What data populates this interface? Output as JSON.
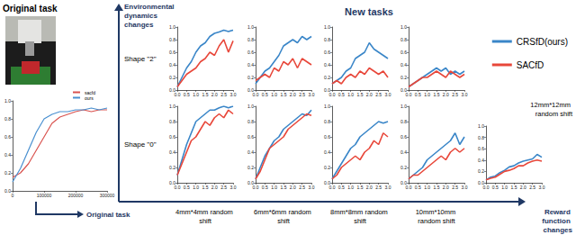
{
  "figure": {
    "left_title": "Original task",
    "right_title": "New tasks",
    "y_arrow_label": "Environmental dynamics changes",
    "x_arrow_label": "Reward function changes",
    "origin_label": "Original task",
    "rows": [
      "Shape \"2\"",
      "Shape \"0\""
    ],
    "columns": [
      "4mm*4mm random shift",
      "6mm*6mm random shift",
      "8mm*8mm random shift",
      "10mm*10mm random shift",
      "12mm*12mm random shift"
    ]
  },
  "chart_data": [
    {
      "type": "line",
      "grid": false,
      "x": [
        0,
        25000,
        50000,
        75000,
        100000,
        125000,
        150000,
        175000,
        200000,
        225000,
        250000,
        275000,
        300000
      ],
      "xlim": [
        0,
        300000
      ],
      "xticks": [
        0,
        100000,
        200000,
        300000
      ],
      "ylim": [
        0,
        1
      ],
      "yticks": [
        {
          "value": 0,
          "label": "0.0"
        },
        0.2,
        0.4,
        0.6,
        0.8,
        {
          "value": 1,
          "label": "1.0"
        }
      ],
      "series": [
        {
          "name": "sacfd",
          "color": "#d9534f",
          "values": [
            0.15,
            0.2,
            0.3,
            0.45,
            0.6,
            0.75,
            0.82,
            0.85,
            0.88,
            0.9,
            0.88,
            0.9,
            0.9
          ]
        },
        {
          "name": "ours",
          "color": "#4a90d0",
          "values": [
            0.1,
            0.25,
            0.45,
            0.65,
            0.8,
            0.85,
            0.88,
            0.88,
            0.9,
            0.9,
            0.92,
            0.9,
            0.92
          ]
        }
      ]
    },
    {
      "type": "line",
      "grid": false,
      "x": [
        0,
        0.25,
        0.5,
        0.75,
        1,
        1.25,
        1.5,
        1.75,
        2,
        2.25,
        2.5,
        2.75,
        3
      ],
      "xlim": [
        0,
        3
      ],
      "xticks": [
        {
          "value": 0,
          "label": "0.0"
        },
        0.5,
        {
          "value": 1,
          "label": "1.0"
        },
        1.5,
        {
          "value": 2,
          "label": "2.0"
        },
        2.5,
        {
          "value": 3,
          "label": "3.0"
        }
      ],
      "ylim": [
        0,
        1
      ],
      "yticks": [
        {
          "value": 0,
          "label": "0.0"
        },
        0.2,
        0.4,
        0.6,
        0.8,
        {
          "value": 1,
          "label": "1.0"
        }
      ],
      "series": [
        {
          "name": "CRSfD(ours)",
          "color": "#3a86c8",
          "values": [
            0.05,
            0.2,
            0.35,
            0.45,
            0.6,
            0.7,
            0.75,
            0.85,
            0.9,
            0.92,
            0.95,
            0.93,
            0.95
          ]
        },
        {
          "name": "SACfD",
          "color": "#e8473a",
          "values": [
            0.05,
            0.15,
            0.25,
            0.3,
            0.35,
            0.45,
            0.5,
            0.6,
            0.55,
            0.7,
            0.8,
            0.6,
            0.78
          ]
        }
      ]
    },
    {
      "type": "line",
      "grid": false,
      "x": [
        0,
        0.25,
        0.5,
        0.75,
        1,
        1.25,
        1.5,
        1.75,
        2,
        2.25,
        2.5,
        2.75,
        3
      ],
      "xlim": [
        0,
        3
      ],
      "xticks": [
        {
          "value": 0,
          "label": "0.0"
        },
        0.5,
        {
          "value": 1,
          "label": "1.0"
        },
        1.5,
        {
          "value": 2,
          "label": "2.0"
        },
        2.5,
        {
          "value": 3,
          "label": "3.0"
        }
      ],
      "ylim": [
        0,
        1
      ],
      "yticks": [
        {
          "value": 0,
          "label": "0.0"
        },
        0.2,
        0.4,
        0.6,
        0.8,
        {
          "value": 1,
          "label": "1.0"
        }
      ],
      "series": [
        {
          "name": "CRSfD(ours)",
          "color": "#3a86c8",
          "values": [
            0.1,
            0.2,
            0.3,
            0.35,
            0.45,
            0.55,
            0.7,
            0.75,
            0.8,
            0.75,
            0.85,
            0.8,
            0.85
          ]
        },
        {
          "name": "SACfD",
          "color": "#e8473a",
          "values": [
            0.15,
            0.2,
            0.25,
            0.2,
            0.35,
            0.3,
            0.45,
            0.4,
            0.5,
            0.35,
            0.5,
            0.45,
            0.4
          ]
        }
      ]
    },
    {
      "type": "line",
      "grid": false,
      "x": [
        0,
        0.25,
        0.5,
        0.75,
        1,
        1.25,
        1.5,
        1.75,
        2,
        2.25,
        2.5,
        2.75,
        3
      ],
      "xlim": [
        0,
        3
      ],
      "xticks": [
        {
          "value": 0,
          "label": "0.0"
        },
        0.5,
        {
          "value": 1,
          "label": "1.0"
        },
        1.5,
        {
          "value": 2,
          "label": "2.0"
        },
        2.5,
        {
          "value": 3,
          "label": "3.0"
        }
      ],
      "ylim": [
        0,
        1
      ],
      "yticks": [
        {
          "value": 0,
          "label": "0.0"
        },
        0.2,
        0.4,
        0.6,
        0.8,
        {
          "value": 1,
          "label": "1.0"
        }
      ],
      "series": [
        {
          "name": "CRSfD(ours)",
          "color": "#3a86c8",
          "values": [
            0.1,
            0.15,
            0.2,
            0.3,
            0.35,
            0.5,
            0.55,
            0.6,
            0.75,
            0.65,
            0.6,
            0.55,
            0.5
          ]
        },
        {
          "name": "SACfD",
          "color": "#e8473a",
          "values": [
            0.1,
            0.15,
            0.1,
            0.2,
            0.25,
            0.2,
            0.3,
            0.25,
            0.35,
            0.3,
            0.25,
            0.3,
            0.2
          ]
        }
      ]
    },
    {
      "type": "line",
      "grid": false,
      "x": [
        0,
        0.25,
        0.5,
        0.75,
        1,
        1.25,
        1.5,
        1.75,
        2,
        2.25,
        2.5,
        2.75,
        3
      ],
      "xlim": [
        0,
        3
      ],
      "xticks": [
        {
          "value": 0,
          "label": "0.0"
        },
        0.5,
        {
          "value": 1,
          "label": "1.0"
        },
        1.5,
        {
          "value": 2,
          "label": "2.0"
        },
        2.5,
        {
          "value": 3,
          "label": "3.0"
        }
      ],
      "ylim": [
        0,
        1
      ],
      "yticks": [
        {
          "value": 0,
          "label": "0.0"
        },
        0.2,
        0.4,
        0.6,
        0.8,
        {
          "value": 1,
          "label": "1.0"
        }
      ],
      "series": [
        {
          "name": "CRSfD(ours)",
          "color": "#3a86c8",
          "values": [
            0.05,
            0.1,
            0.15,
            0.2,
            0.25,
            0.3,
            0.35,
            0.3,
            0.35,
            0.25,
            0.3,
            0.25,
            0.3
          ]
        },
        {
          "name": "SACfD",
          "color": "#e8473a",
          "values": [
            0.05,
            0.1,
            0.15,
            0.2,
            0.2,
            0.25,
            0.3,
            0.25,
            0.2,
            0.3,
            0.25,
            0.2,
            0.25
          ]
        }
      ]
    },
    {
      "type": "line",
      "grid": false,
      "x": [
        0,
        0.25,
        0.5,
        0.75,
        1,
        1.25,
        1.5,
        1.75,
        2,
        2.25,
        2.5,
        2.75,
        3
      ],
      "xlim": [
        0,
        3
      ],
      "xticks": [
        {
          "value": 0,
          "label": "0.0"
        },
        0.5,
        {
          "value": 1,
          "label": "1.0"
        },
        1.5,
        {
          "value": 2,
          "label": "2.0"
        },
        2.5,
        {
          "value": 3,
          "label": "3.0"
        }
      ],
      "ylim": [
        0,
        1
      ],
      "yticks": [
        {
          "value": 0,
          "label": "0.0"
        },
        0.2,
        0.4,
        0.6,
        0.8,
        {
          "value": 1,
          "label": "1.0"
        }
      ],
      "series": [
        {
          "name": "CRSfD(ours)",
          "color": "#3a86c8",
          "values": [
            0.1,
            0.3,
            0.5,
            0.65,
            0.8,
            0.85,
            0.9,
            0.95,
            0.95,
            0.98,
            1.0,
            0.98,
            1.0
          ]
        },
        {
          "name": "SACfD",
          "color": "#e8473a",
          "values": [
            0.1,
            0.25,
            0.4,
            0.55,
            0.6,
            0.7,
            0.8,
            0.75,
            0.85,
            0.9,
            0.85,
            0.95,
            0.9
          ]
        }
      ]
    },
    {
      "type": "line",
      "grid": false,
      "x": [
        0,
        0.25,
        0.5,
        0.75,
        1,
        1.25,
        1.5,
        1.75,
        2,
        2.25,
        2.5,
        2.75,
        3
      ],
      "xlim": [
        0,
        3
      ],
      "xticks": [
        {
          "value": 0,
          "label": "0.0"
        },
        0.5,
        {
          "value": 1,
          "label": "1.0"
        },
        1.5,
        {
          "value": 2,
          "label": "2.0"
        },
        2.5,
        {
          "value": 3,
          "label": "3.0"
        }
      ],
      "ylim": [
        0,
        1
      ],
      "yticks": [
        {
          "value": 0,
          "label": "0.0"
        },
        0.2,
        0.4,
        0.6,
        0.8,
        {
          "value": 1,
          "label": "1.0"
        }
      ],
      "series": [
        {
          "name": "CRSfD(ours)",
          "color": "#3a86c8",
          "values": [
            0.05,
            0.2,
            0.35,
            0.45,
            0.55,
            0.6,
            0.7,
            0.75,
            0.8,
            0.85,
            0.9,
            0.88,
            0.95
          ]
        },
        {
          "name": "SACfD",
          "color": "#e8473a",
          "values": [
            0.05,
            0.15,
            0.3,
            0.45,
            0.5,
            0.55,
            0.6,
            0.7,
            0.75,
            0.8,
            0.85,
            0.9,
            0.88
          ]
        }
      ]
    },
    {
      "type": "line",
      "grid": false,
      "x": [
        0,
        0.25,
        0.5,
        0.75,
        1,
        1.25,
        1.5,
        1.75,
        2,
        2.25,
        2.5,
        2.75,
        3
      ],
      "xlim": [
        0,
        3
      ],
      "xticks": [
        {
          "value": 0,
          "label": "0.0"
        },
        0.5,
        {
          "value": 1,
          "label": "1.0"
        },
        1.5,
        {
          "value": 2,
          "label": "2.0"
        },
        2.5,
        {
          "value": 3,
          "label": "3.0"
        }
      ],
      "ylim": [
        0,
        1
      ],
      "yticks": [
        {
          "value": 0,
          "label": "0.0"
        },
        0.2,
        0.4,
        0.6,
        0.8,
        {
          "value": 1,
          "label": "1.0"
        }
      ],
      "series": [
        {
          "name": "CRSfD(ours)",
          "color": "#3a86c8",
          "values": [
            0.05,
            0.15,
            0.25,
            0.35,
            0.45,
            0.5,
            0.6,
            0.65,
            0.7,
            0.75,
            0.8,
            0.78,
            0.8
          ]
        },
        {
          "name": "SACfD",
          "color": "#e8473a",
          "values": [
            0.05,
            0.1,
            0.2,
            0.25,
            0.3,
            0.35,
            0.3,
            0.4,
            0.45,
            0.55,
            0.5,
            0.65,
            0.6
          ]
        }
      ]
    },
    {
      "type": "line",
      "grid": false,
      "x": [
        0,
        0.25,
        0.5,
        0.75,
        1,
        1.25,
        1.5,
        1.75,
        2,
        2.25,
        2.5,
        2.75,
        3
      ],
      "xlim": [
        0,
        3
      ],
      "xticks": [
        {
          "value": 0,
          "label": "0.0"
        },
        0.5,
        {
          "value": 1,
          "label": "1.0"
        },
        1.5,
        {
          "value": 2,
          "label": "2.0"
        },
        2.5,
        {
          "value": 3,
          "label": "3.0"
        }
      ],
      "ylim": [
        0,
        1
      ],
      "yticks": [
        {
          "value": 0,
          "label": "0.0"
        },
        0.2,
        0.4,
        0.6,
        0.8,
        {
          "value": 1,
          "label": "1.0"
        }
      ],
      "series": [
        {
          "name": "CRSfD(ours)",
          "color": "#3a86c8",
          "values": [
            0.05,
            0.1,
            0.15,
            0.2,
            0.3,
            0.35,
            0.4,
            0.45,
            0.5,
            0.55,
            0.65,
            0.5,
            0.6
          ]
        },
        {
          "name": "SACfD",
          "color": "#e8473a",
          "values": [
            0.05,
            0.1,
            0.1,
            0.15,
            0.2,
            0.25,
            0.3,
            0.35,
            0.3,
            0.4,
            0.45,
            0.4,
            0.45
          ]
        }
      ]
    },
    {
      "type": "line",
      "grid": false,
      "x": [
        0,
        0.25,
        0.5,
        0.75,
        1,
        1.25,
        1.5,
        1.75,
        2,
        2.25,
        2.5,
        2.75,
        3
      ],
      "xlim": [
        0,
        3
      ],
      "xticks": [
        {
          "value": 0,
          "label": "0.0"
        },
        0.5,
        {
          "value": 1,
          "label": "1.0"
        },
        1.5,
        {
          "value": 2,
          "label": "2.0"
        },
        2.5,
        {
          "value": 3,
          "label": "3.0"
        }
      ],
      "ylim": [
        0,
        1
      ],
      "yticks": [
        {
          "value": 0,
          "label": "0.0"
        },
        0.2,
        0.4,
        0.6,
        0.8,
        {
          "value": 1,
          "label": "1.0"
        }
      ],
      "series": [
        {
          "name": "CRSfD(ours)",
          "color": "#3a86c8",
          "values": [
            0.05,
            0.1,
            0.12,
            0.18,
            0.22,
            0.28,
            0.3,
            0.35,
            0.38,
            0.4,
            0.42,
            0.5,
            0.45
          ]
        },
        {
          "name": "SACfD",
          "color": "#e8473a",
          "values": [
            0.05,
            0.08,
            0.1,
            0.15,
            0.2,
            0.22,
            0.25,
            0.3,
            0.3,
            0.35,
            0.38,
            0.4,
            0.38
          ]
        }
      ]
    }
  ]
}
